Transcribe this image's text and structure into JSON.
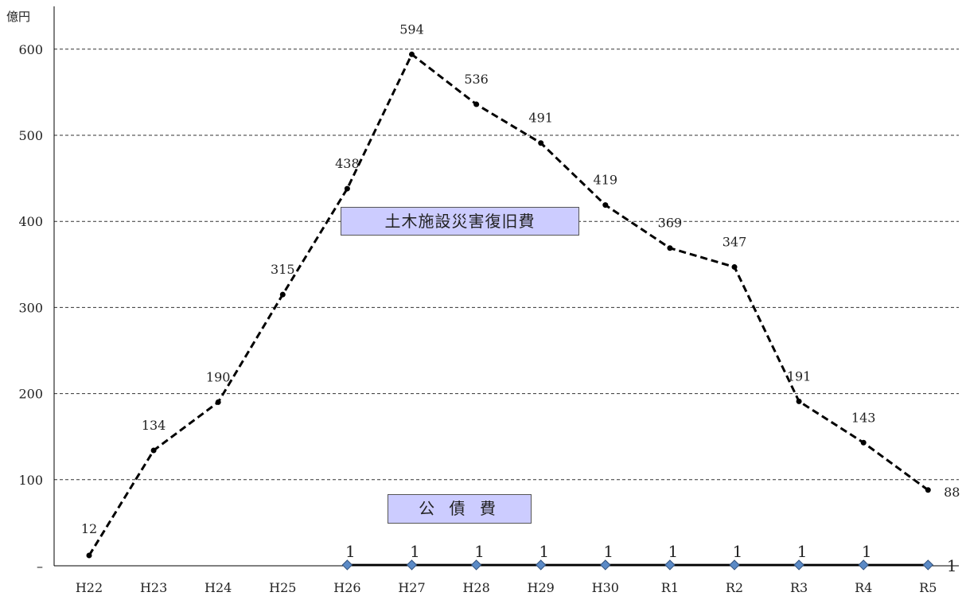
{
  "chart_data": {
    "type": "line",
    "ylabel": "億円",
    "categories": [
      "H22",
      "H23",
      "H24",
      "H25",
      "H26",
      "H27",
      "H28",
      "H29",
      "H30",
      "R1",
      "R2",
      "R3",
      "R4",
      "R5"
    ],
    "yticks": [
      "–",
      "100",
      "200",
      "300",
      "400",
      "500",
      "600"
    ],
    "ylim": [
      0,
      650
    ],
    "grid": true,
    "series": [
      {
        "name": "土木施設災害復旧費",
        "values": [
          12,
          134,
          190,
          315,
          438,
          594,
          536,
          491,
          419,
          369,
          347,
          191,
          143,
          88
        ],
        "labels": [
          "12",
          "134",
          "190",
          "315",
          "438",
          "594",
          "536",
          "491",
          "419",
          "369",
          "347",
          "191",
          "143",
          "88"
        ],
        "style": "dashed",
        "color": "#000000"
      },
      {
        "name": "公 債 費",
        "values": [
          null,
          null,
          null,
          null,
          1,
          1,
          1,
          1,
          1,
          1,
          1,
          1,
          1,
          1
        ],
        "labels": [
          "",
          "",
          "",
          "",
          "1",
          "1",
          "1",
          "1",
          "1",
          "1",
          "1",
          "1",
          "1",
          "1"
        ],
        "style": "solid",
        "color": "#000000",
        "marker_color": "#5b8ac6"
      }
    ]
  }
}
